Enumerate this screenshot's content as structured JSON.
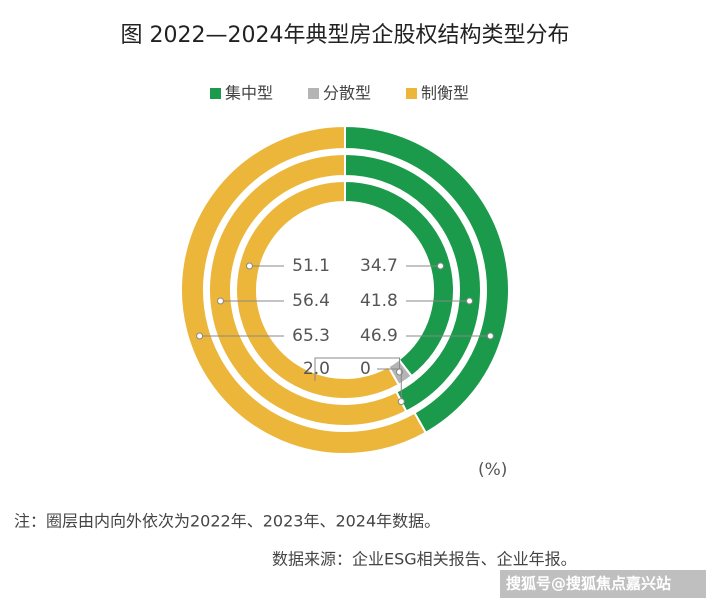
{
  "chart_data": {
    "type": "nested-donut",
    "title": "图 2022—2024年典型房企股权结构类型分布",
    "unit": "(%)",
    "series": [
      {
        "name": "集中型",
        "color": "#1a9a4a",
        "values": [
          34.7,
          41.8,
          46.9
        ]
      },
      {
        "name": "分散型",
        "color": "#b4b4b4",
        "values": [
          2.0,
          0,
          null
        ],
        "value_labels": [
          "2.0",
          "0",
          null
        ]
      },
      {
        "name": "制衡型",
        "color": "#ecb63a",
        "values": [
          51.1,
          56.4,
          65.3
        ]
      }
    ],
    "note": "注：圈层由内向外依次为2022年、2023年、2024年数据。",
    "source": "数据来源：企业ESG相关报告、企业年报。",
    "watermark": "搜狐号@搜狐焦点嘉兴站"
  }
}
